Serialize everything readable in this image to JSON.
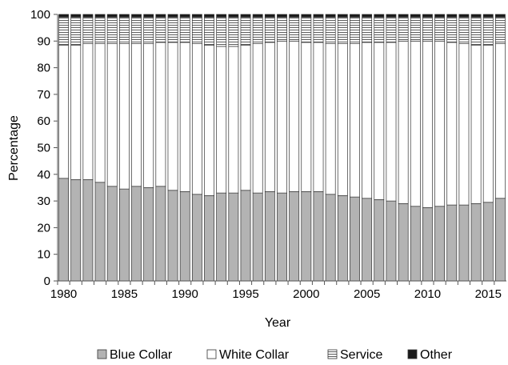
{
  "chart_data": {
    "type": "bar",
    "stacked": true,
    "title": "",
    "xlabel": "Year",
    "ylabel": "Percentage",
    "ylim": [
      0,
      100
    ],
    "yticks": [
      0,
      10,
      20,
      30,
      40,
      50,
      60,
      70,
      80,
      90,
      100
    ],
    "xtick_labels": [
      "1980",
      "1985",
      "1990",
      "1995",
      "2000",
      "2005",
      "2010",
      "2015"
    ],
    "categories": [
      1980,
      1981,
      1982,
      1983,
      1984,
      1985,
      1986,
      1987,
      1988,
      1989,
      1990,
      1991,
      1992,
      1993,
      1994,
      1995,
      1996,
      1997,
      1998,
      1999,
      2000,
      2001,
      2002,
      2003,
      2004,
      2005,
      2006,
      2007,
      2008,
      2009,
      2010,
      2011,
      2012,
      2013,
      2014,
      2015,
      2016
    ],
    "grid": false,
    "legend_position": "bottom",
    "series": [
      {
        "name": "Blue Collar",
        "color": "#b3b3b3",
        "pattern": "solid",
        "values": [
          38.5,
          38.0,
          38.0,
          37.0,
          35.5,
          34.5,
          35.5,
          35.0,
          35.5,
          34.0,
          33.5,
          32.5,
          32.0,
          33.0,
          33.0,
          34.0,
          33.0,
          33.5,
          33.0,
          33.5,
          33.5,
          33.5,
          32.5,
          32.0,
          31.5,
          31.0,
          30.5,
          30.0,
          29.0,
          28.0,
          27.5,
          28.0,
          28.5,
          28.5,
          29.0,
          29.5,
          31.0
        ]
      },
      {
        "name": "White Collar",
        "color": "#ffffff",
        "pattern": "solid",
        "values": [
          50.0,
          50.5,
          51.0,
          52.0,
          53.5,
          54.5,
          53.5,
          54.0,
          54.0,
          55.5,
          56.0,
          56.5,
          56.5,
          55.0,
          55.0,
          54.5,
          56.0,
          56.0,
          57.0,
          56.5,
          56.0,
          56.0,
          56.5,
          57.0,
          57.5,
          58.5,
          59.0,
          59.5,
          61.0,
          62.0,
          62.5,
          62.0,
          61.0,
          60.5,
          59.5,
          59.0,
          58.0
        ]
      },
      {
        "name": "Service",
        "color": "#ffffff",
        "pattern": "horizontal-lines",
        "values": [
          10.5,
          10.5,
          10.0,
          10.0,
          10.0,
          10.0,
          10.0,
          10.0,
          9.5,
          9.5,
          9.5,
          10.0,
          10.5,
          11.0,
          11.0,
          10.5,
          10.0,
          9.5,
          9.0,
          9.0,
          9.5,
          9.5,
          10.0,
          10.0,
          10.0,
          9.5,
          9.5,
          9.5,
          9.0,
          9.0,
          9.0,
          9.0,
          9.5,
          10.0,
          10.5,
          10.5,
          10.0
        ]
      },
      {
        "name": "Other",
        "color": "#1a1a1a",
        "pattern": "solid",
        "values": [
          1.0,
          1.0,
          1.0,
          1.0,
          1.0,
          1.0,
          1.0,
          1.0,
          1.0,
          1.0,
          1.0,
          1.0,
          1.0,
          1.0,
          1.0,
          1.0,
          1.0,
          1.0,
          1.0,
          1.0,
          1.0,
          1.0,
          1.0,
          1.0,
          1.0,
          1.0,
          1.0,
          1.0,
          1.0,
          1.0,
          1.0,
          1.0,
          1.0,
          1.0,
          1.0,
          1.0,
          1.0
        ]
      }
    ]
  }
}
